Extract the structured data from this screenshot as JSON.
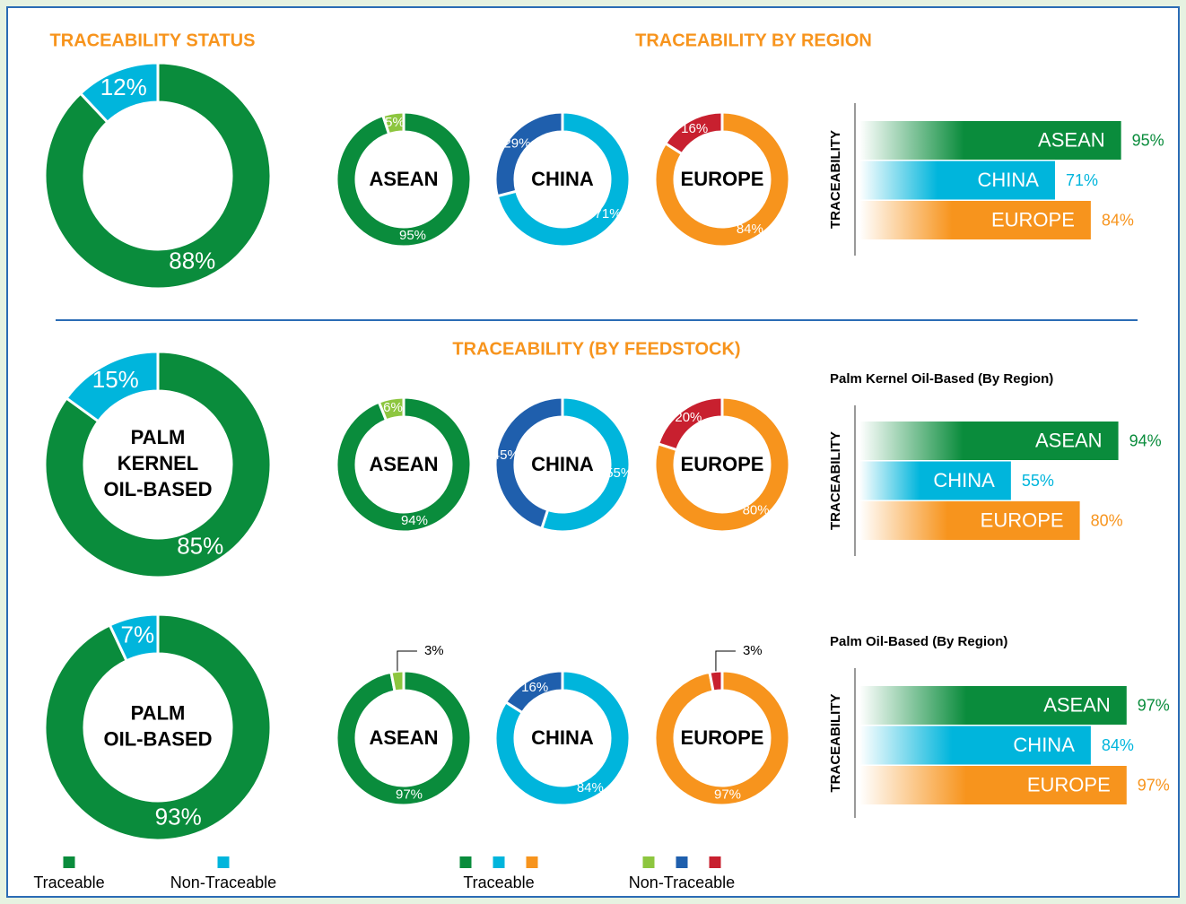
{
  "titles": {
    "status": "TRACEABILITY STATUS",
    "region": "TRACEABILITY BY REGION",
    "feedstock": "TRACEABILITY (BY FEEDSTOCK)"
  },
  "chart_data": [
    {
      "type": "donut",
      "values": [
        88,
        12
      ],
      "value_labels": [
        "88%",
        "12%"
      ],
      "colors": [
        "#0a8c3c",
        "#00b5dc"
      ]
    },
    {
      "type": "donut",
      "title": "ASEAN",
      "values": [
        95,
        5
      ],
      "value_labels": [
        "95%",
        "5%"
      ],
      "colors": [
        "#0a8c3c",
        "#8dc63f"
      ]
    },
    {
      "type": "donut",
      "title": "CHINA",
      "values": [
        71,
        29
      ],
      "value_labels": [
        "71%",
        "29%"
      ],
      "colors": [
        "#00b5dc",
        "#1f5fad"
      ]
    },
    {
      "type": "donut",
      "title": "EUROPE",
      "values": [
        84,
        16
      ],
      "value_labels": [
        "84%",
        "16%"
      ],
      "colors": [
        "#f7941d",
        "#c8202f"
      ]
    },
    {
      "type": "hbar",
      "ylabel": "TRACEABILITY",
      "categories": [
        "ASEAN",
        "CHINA",
        "EUROPE"
      ],
      "values": [
        95,
        71,
        84
      ],
      "value_labels": [
        "95%",
        "71%",
        "84%"
      ],
      "colors": [
        "#0a8c3c",
        "#00b5dc",
        "#f7941d"
      ],
      "xlim": [
        0,
        100
      ]
    },
    {
      "type": "donut",
      "title_lines": [
        "PALM",
        "KERNEL",
        "OIL-BASED"
      ],
      "values": [
        85,
        15
      ],
      "value_labels": [
        "85%",
        "15%"
      ],
      "colors": [
        "#0a8c3c",
        "#00b5dc"
      ]
    },
    {
      "type": "donut",
      "title": "ASEAN",
      "values": [
        94,
        6
      ],
      "value_labels": [
        "94%",
        "6%"
      ],
      "colors": [
        "#0a8c3c",
        "#8dc63f"
      ]
    },
    {
      "type": "donut",
      "title": "CHINA",
      "values": [
        55,
        45
      ],
      "value_labels": [
        "55%",
        "45%"
      ],
      "colors": [
        "#00b5dc",
        "#1f5fad"
      ]
    },
    {
      "type": "donut",
      "title": "EUROPE",
      "values": [
        80,
        20
      ],
      "value_labels": [
        "80%",
        "20%"
      ],
      "colors": [
        "#f7941d",
        "#c8202f"
      ]
    },
    {
      "type": "hbar",
      "title": "Palm Kernel Oil-Based (By Region)",
      "ylabel": "TRACEABILITY",
      "categories": [
        "ASEAN",
        "CHINA",
        "EUROPE"
      ],
      "values": [
        94,
        55,
        80
      ],
      "value_labels": [
        "94%",
        "55%",
        "80%"
      ],
      "colors": [
        "#0a8c3c",
        "#00b5dc",
        "#f7941d"
      ],
      "xlim": [
        0,
        100
      ]
    },
    {
      "type": "donut",
      "title_lines": [
        "PALM",
        "OIL-BASED"
      ],
      "values": [
        93,
        7
      ],
      "value_labels": [
        "93%",
        "7%"
      ],
      "colors": [
        "#0a8c3c",
        "#00b5dc"
      ]
    },
    {
      "type": "donut",
      "title": "ASEAN",
      "values": [
        97,
        3
      ],
      "value_labels": [
        "97%",
        "3%"
      ],
      "colors": [
        "#0a8c3c",
        "#8dc63f"
      ]
    },
    {
      "type": "donut",
      "title": "CHINA",
      "values": [
        84,
        16
      ],
      "value_labels": [
        "84%",
        "16%"
      ],
      "colors": [
        "#00b5dc",
        "#1f5fad"
      ]
    },
    {
      "type": "donut",
      "title": "EUROPE",
      "values": [
        97,
        3
      ],
      "value_labels": [
        "97%",
        "3%"
      ],
      "colors": [
        "#f7941d",
        "#c8202f"
      ]
    },
    {
      "type": "hbar",
      "title": "Palm Oil-Based (By Region)",
      "ylabel": "TRACEABILITY",
      "categories": [
        "ASEAN",
        "CHINA",
        "EUROPE"
      ],
      "values": [
        97,
        84,
        97
      ],
      "value_labels": [
        "97%",
        "84%",
        "97%"
      ],
      "colors": [
        "#0a8c3c",
        "#00b5dc",
        "#f7941d"
      ],
      "xlim": [
        0,
        100
      ]
    }
  ],
  "legends": [
    {
      "items": [
        {
          "label": "Traceable",
          "colors": [
            "#0a8c3c"
          ]
        },
        {
          "label": "Non-Traceable",
          "colors": [
            "#00b5dc"
          ]
        }
      ]
    },
    {
      "items": [
        {
          "label": "Traceable",
          "colors": [
            "#0a8c3c",
            "#00b5dc",
            "#f7941d"
          ]
        },
        {
          "label": "Non-Traceable",
          "colors": [
            "#8dc63f",
            "#1f5fad",
            "#c8202f"
          ]
        }
      ]
    }
  ]
}
